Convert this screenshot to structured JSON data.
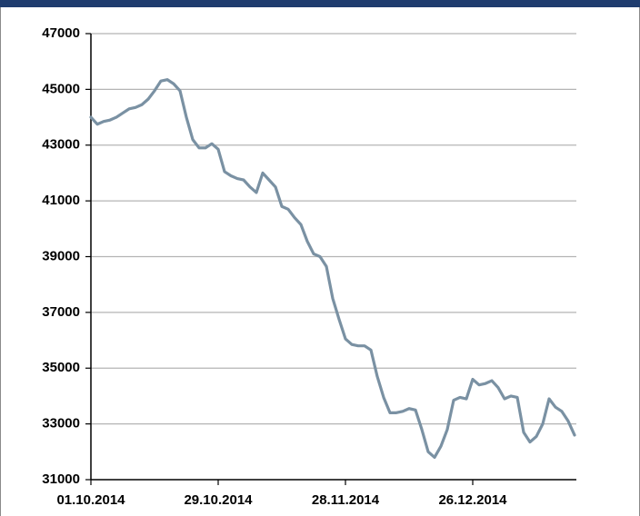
{
  "chart_data": {
    "type": "line",
    "categories": [
      "01.10.2014",
      null,
      null,
      null,
      null,
      null,
      null,
      null,
      null,
      null,
      null,
      null,
      null,
      null,
      null,
      null,
      null,
      null,
      null,
      null,
      "29.10.2014",
      null,
      null,
      null,
      null,
      null,
      null,
      null,
      null,
      null,
      null,
      null,
      null,
      null,
      null,
      null,
      null,
      null,
      null,
      null,
      "28.11.2014",
      null,
      null,
      null,
      null,
      null,
      null,
      null,
      null,
      null,
      null,
      null,
      null,
      null,
      null,
      null,
      null,
      null,
      null,
      null,
      "26.12.2014",
      null,
      null,
      null,
      null,
      null,
      null,
      null,
      null,
      null,
      null,
      null,
      null,
      null,
      null,
      null,
      null
    ],
    "series": [
      {
        "color": "#7a91a3",
        "values": [
          44000,
          43750,
          43850,
          43900,
          44000,
          44150,
          44300,
          44350,
          44450,
          44650,
          44950,
          45300,
          45350,
          45200,
          44950,
          44000,
          43200,
          42900,
          42900,
          43050,
          42850,
          42050,
          41900,
          41800,
          41750,
          41500,
          41300,
          42000,
          41750,
          41500,
          40800,
          40700,
          40400,
          40150,
          39550,
          39100,
          39000,
          38650,
          37500,
          36750,
          36050,
          35850,
          35800,
          35800,
          35650,
          34700,
          33950,
          33400,
          33400,
          33450,
          33550,
          33500,
          32800,
          32000,
          31800,
          32200,
          32800,
          33850,
          33950,
          33900,
          34600,
          34400,
          34450,
          34550,
          34300,
          33900,
          34000,
          33950,
          32700,
          32350,
          32550,
          33000,
          33900,
          33600,
          33450,
          33100,
          32600
        ]
      }
    ],
    "ylim": [
      31000,
      47000
    ],
    "yticks": [
      31000,
      33000,
      35000,
      37000,
      39000,
      41000,
      43000,
      45000,
      47000
    ],
    "grid": true
  }
}
